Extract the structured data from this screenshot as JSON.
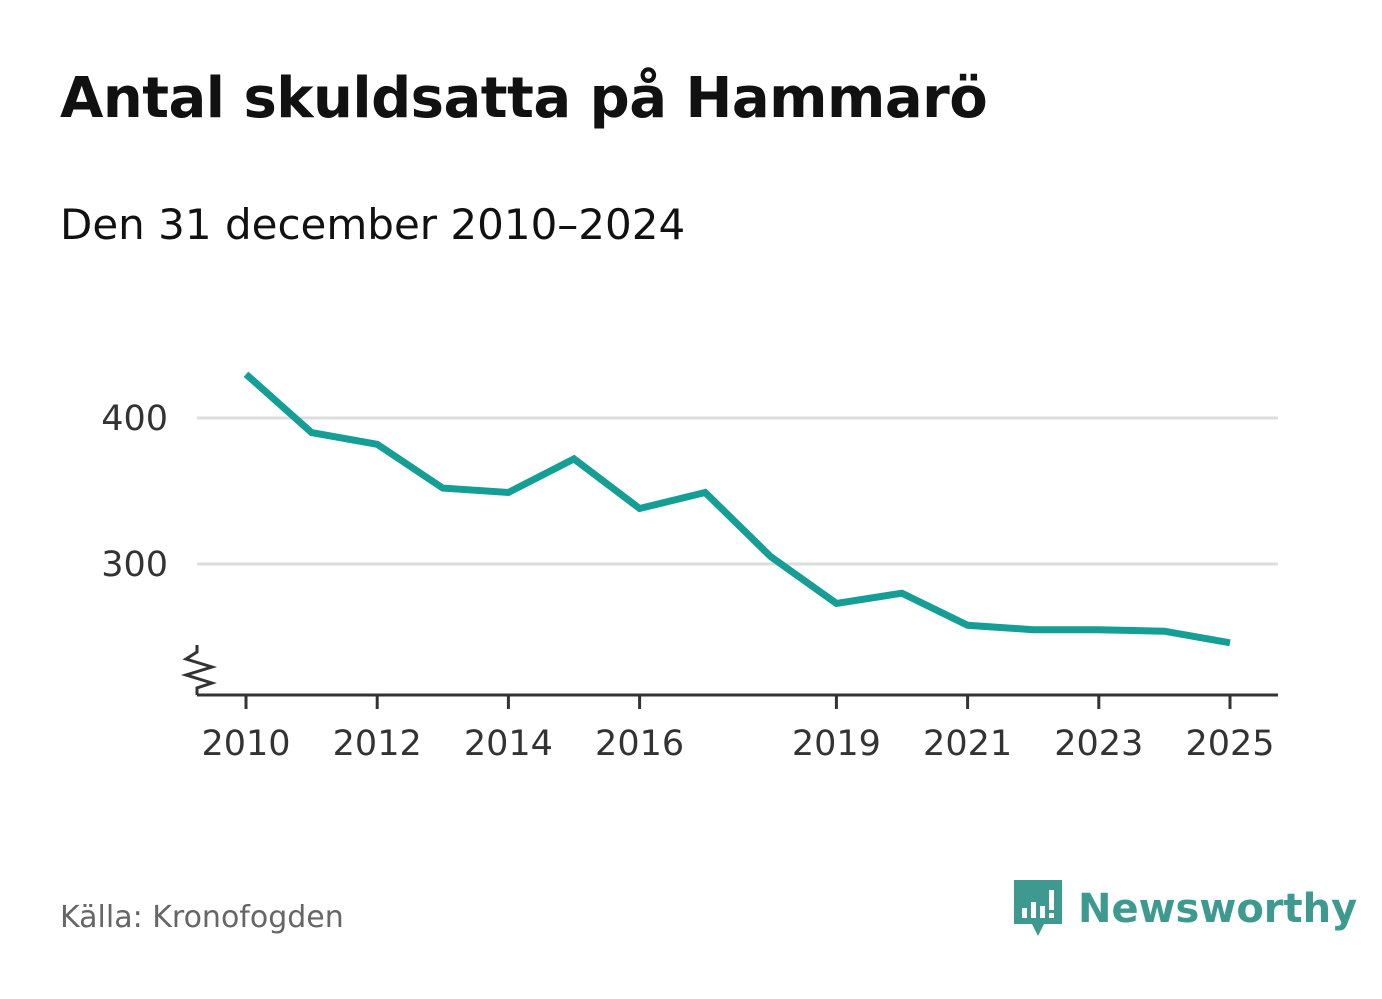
{
  "title": "Antal skuldsatta på Hammarö",
  "subtitle": "Den 31 december 2010–2024",
  "source": "Källa: Kronofogden",
  "brand": {
    "name": "Newsworthy",
    "icon": "newsworthy-logo-icon"
  },
  "colors": {
    "line": "#159e96",
    "brand": "#3e9a90",
    "grid": "#dddddd",
    "axis": "#333333"
  },
  "chart_data": {
    "type": "line",
    "title": "Antal skuldsatta på Hammarö",
    "subtitle": "Den 31 december 2010–2024",
    "xlabel": "",
    "ylabel": "",
    "x_ticks": [
      "2010",
      "2012",
      "2014",
      "2016",
      "2019",
      "2021",
      "2023",
      "2025"
    ],
    "y_ticks": [
      300,
      400
    ],
    "y_axis_break": true,
    "grid": "horizontal",
    "series": [
      {
        "name": "Antal skuldsatta",
        "x": [
          2010,
          2011,
          2012,
          2013,
          2014,
          2015,
          2016,
          2017,
          2018,
          2019,
          2020,
          2021,
          2022,
          2023,
          2024,
          2025
        ],
        "values": [
          430,
          390,
          382,
          352,
          349,
          372,
          338,
          349,
          305,
          273,
          280,
          258,
          255,
          255,
          254,
          246
        ]
      }
    ],
    "xlim": [
      2010,
      2025
    ],
    "ylim": [
      210,
      430
    ]
  }
}
